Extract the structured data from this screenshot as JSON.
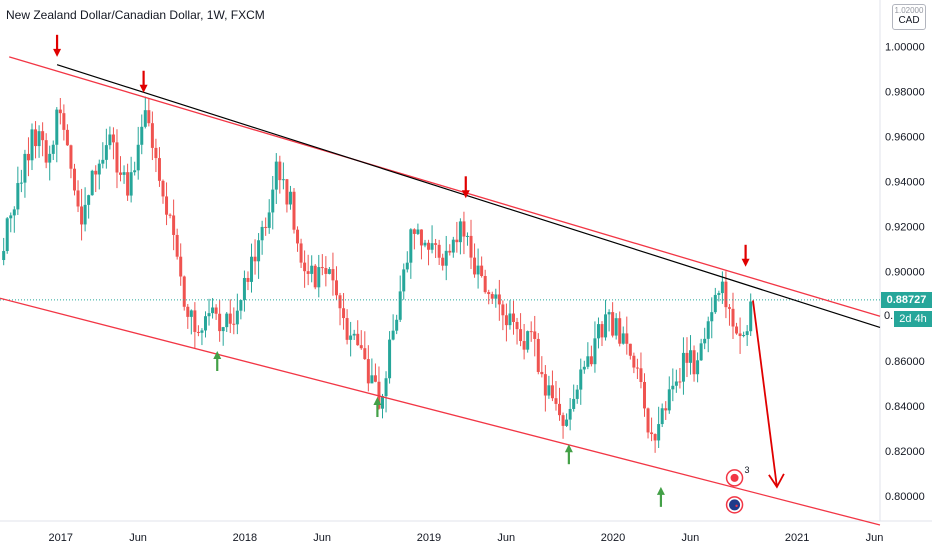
{
  "header": {
    "title": "New Zealand Dollar/Canadian Dollar, 1W, FXCM",
    "currency_top": "1.02000",
    "currency": "CAD"
  },
  "price_axis": {
    "last_price": "0.88727",
    "countdown": "2d 4h",
    "partial_label": "0."
  },
  "colors": {
    "up": "#26a69a",
    "down": "#ef5350",
    "channel": "#f23645",
    "trendline": "#000000",
    "sell_arrow": "#e00000",
    "buy_arrow": "#43a047",
    "last_price_line": "#26a69a"
  },
  "chart_data": {
    "type": "candlestick",
    "xlabel": "",
    "ylabel": "",
    "ylim": [
      0.7888,
      1.0208
    ],
    "xlim": [
      2016.67,
      2021.45
    ],
    "y_ticks": [
      {
        "value": 1.0,
        "label": "1.00000"
      },
      {
        "value": 0.98,
        "label": "0.98000"
      },
      {
        "value": 0.96,
        "label": "0.96000"
      },
      {
        "value": 0.94,
        "label": "0.94000"
      },
      {
        "value": 0.92,
        "label": "0.92000"
      },
      {
        "value": 0.9,
        "label": "0.90000"
      },
      {
        "value": 0.86,
        "label": "0.86000"
      },
      {
        "value": 0.84,
        "label": "0.84000"
      },
      {
        "value": 0.82,
        "label": "0.82000"
      },
      {
        "value": 0.8,
        "label": "0.80000"
      }
    ],
    "x_ticks": [
      {
        "value": 2017.0,
        "label": "2017"
      },
      {
        "value": 2017.42,
        "label": "Jun"
      },
      {
        "value": 2018.0,
        "label": "2018"
      },
      {
        "value": 2018.42,
        "label": "Jun"
      },
      {
        "value": 2019.0,
        "label": "2019"
      },
      {
        "value": 2019.42,
        "label": "Jun"
      },
      {
        "value": 2020.0,
        "label": "2020"
      },
      {
        "value": 2020.42,
        "label": "Jun"
      },
      {
        "value": 2021.0,
        "label": "2021"
      },
      {
        "value": 2021.42,
        "label": "Jun"
      }
    ],
    "anchors": [
      [
        2016.69,
        0.915
      ],
      [
        2016.78,
        0.94
      ],
      [
        2016.86,
        0.962
      ],
      [
        2016.93,
        0.95
      ],
      [
        2016.99,
        0.974
      ],
      [
        2017.06,
        0.945
      ],
      [
        2017.12,
        0.922
      ],
      [
        2017.2,
        0.95
      ],
      [
        2017.27,
        0.96
      ],
      [
        2017.36,
        0.934
      ],
      [
        2017.43,
        0.962
      ],
      [
        2017.47,
        0.972
      ],
      [
        2017.55,
        0.932
      ],
      [
        2017.62,
        0.912
      ],
      [
        2017.68,
        0.885
      ],
      [
        2017.74,
        0.874
      ],
      [
        2017.82,
        0.88
      ],
      [
        2017.92,
        0.878
      ],
      [
        2018.0,
        0.894
      ],
      [
        2018.07,
        0.908
      ],
      [
        2018.13,
        0.926
      ],
      [
        2018.18,
        0.948
      ],
      [
        2018.25,
        0.93
      ],
      [
        2018.31,
        0.906
      ],
      [
        2018.38,
        0.898
      ],
      [
        2018.45,
        0.905
      ],
      [
        2018.52,
        0.88
      ],
      [
        2018.6,
        0.868
      ],
      [
        2018.67,
        0.856
      ],
      [
        2018.74,
        0.838
      ],
      [
        2018.8,
        0.872
      ],
      [
        2018.86,
        0.902
      ],
      [
        2018.92,
        0.918
      ],
      [
        2019.0,
        0.91
      ],
      [
        2019.08,
        0.906
      ],
      [
        2019.14,
        0.912
      ],
      [
        2019.2,
        0.922
      ],
      [
        2019.25,
        0.902
      ],
      [
        2019.32,
        0.892
      ],
      [
        2019.42,
        0.878
      ],
      [
        2019.5,
        0.872
      ],
      [
        2019.57,
        0.866
      ],
      [
        2019.64,
        0.848
      ],
      [
        2019.7,
        0.836
      ],
      [
        2019.76,
        0.838
      ],
      [
        2019.83,
        0.852
      ],
      [
        2019.9,
        0.868
      ],
      [
        2019.97,
        0.878
      ],
      [
        2020.03,
        0.872
      ],
      [
        2020.1,
        0.862
      ],
      [
        2020.16,
        0.846
      ],
      [
        2020.21,
        0.824
      ],
      [
        2020.26,
        0.834
      ],
      [
        2020.33,
        0.846
      ],
      [
        2020.38,
        0.858
      ],
      [
        2020.44,
        0.86
      ],
      [
        2020.5,
        0.876
      ],
      [
        2020.55,
        0.886
      ],
      [
        2020.6,
        0.895
      ],
      [
        2020.65,
        0.875
      ],
      [
        2020.7,
        0.864
      ],
      [
        2020.74,
        0.882
      ],
      [
        2020.76,
        0.887
      ]
    ],
    "channel": {
      "upper": [
        [
          2016.72,
          0.9955
        ],
        [
          2021.45,
          0.88
        ]
      ],
      "lower": [
        [
          2016.67,
          0.888
        ],
        [
          2021.45,
          0.787
        ]
      ]
    },
    "trendline": [
      [
        2016.98,
        0.992
      ],
      [
        2021.45,
        0.875
      ]
    ],
    "last_price_value": 0.88727,
    "projection": [
      [
        2020.76,
        0.887
      ],
      [
        2020.89,
        0.804
      ]
    ],
    "sell_signals": [
      [
        2016.98,
        0.9955
      ],
      [
        2017.45,
        0.9795
      ],
      [
        2019.2,
        0.9325
      ],
      [
        2020.72,
        0.902
      ]
    ],
    "buy_signals": [
      [
        2017.85,
        0.8645
      ],
      [
        2018.72,
        0.844
      ],
      [
        2019.76,
        0.823
      ],
      [
        2020.26,
        0.804
      ]
    ],
    "event_badges": [
      {
        "x": 2020.66,
        "y": 0.808,
        "count": "3"
      },
      {
        "x": 2020.66,
        "y": 0.796
      }
    ]
  }
}
